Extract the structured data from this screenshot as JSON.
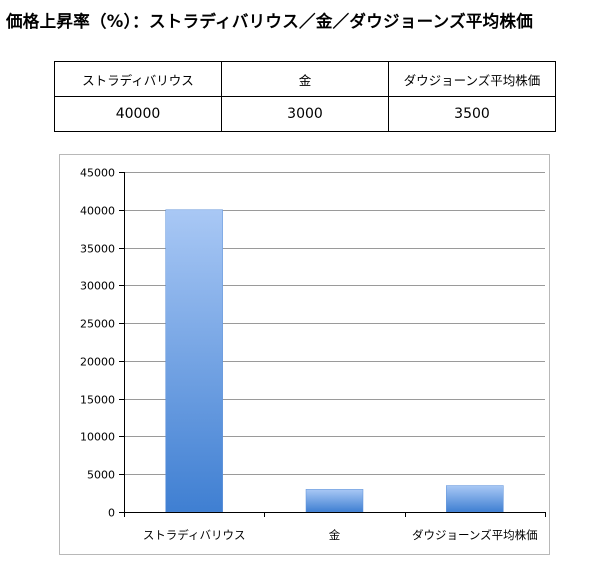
{
  "title": "価格上昇率（%）：ストラディバリウス／金／ダウジョーンズ平均株価",
  "table": {
    "headers": [
      "ストラディバリウス",
      "金",
      "ダウジョーンズ平均株価"
    ],
    "values": [
      "40000",
      "3000",
      "3500"
    ]
  },
  "chart_data": {
    "type": "bar",
    "title": "",
    "xlabel": "",
    "ylabel": "",
    "categories": [
      "ストラディバリウス",
      "金",
      "ダウジョーンズ平均株価"
    ],
    "values": [
      40000,
      3000,
      3500
    ],
    "ylim": [
      0,
      45000
    ],
    "y_ticks": [
      "0",
      "5000",
      "10000",
      "15000",
      "20000",
      "25000",
      "30000",
      "35000",
      "40000",
      "45000"
    ],
    "grid": true,
    "legend": "none",
    "bar_color_top": "#a9c8f5",
    "bar_color_bottom": "#3f7fd2"
  }
}
